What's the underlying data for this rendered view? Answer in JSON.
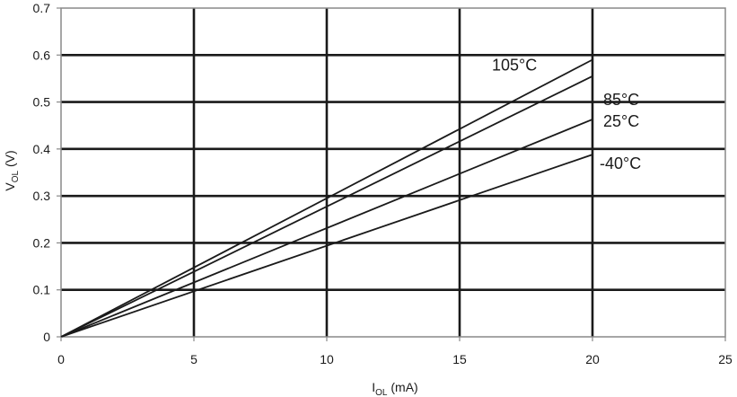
{
  "chart_data": {
    "type": "line",
    "title": "",
    "xlabel": {
      "main": "I",
      "sub": "OL",
      "rest": " (mA)"
    },
    "ylabel": {
      "main": "V",
      "sub": "OL",
      "rest": " (V)"
    },
    "xlim": [
      0,
      25
    ],
    "ylim": [
      0,
      0.7
    ],
    "xticks": [
      "0",
      "5",
      "10",
      "15",
      "20",
      "25"
    ],
    "yticks": [
      "0",
      "0.1",
      "0.2",
      "0.3",
      "0.4",
      "0.5",
      "0.6",
      "0.7"
    ],
    "xtick_values": [
      0,
      5,
      10,
      15,
      20,
      25
    ],
    "ytick_values": [
      0,
      0.1,
      0.2,
      0.3,
      0.4,
      0.5,
      0.6,
      0.7
    ],
    "grid": true,
    "legend": "inline labels",
    "series": [
      {
        "name": "105°C",
        "x": [
          0,
          20
        ],
        "y": [
          0,
          0.59
        ]
      },
      {
        "name": "85°C",
        "x": [
          0,
          20
        ],
        "y": [
          0,
          0.555
        ]
      },
      {
        "name": "25°C",
        "x": [
          0,
          20
        ],
        "y": [
          0,
          0.463
        ]
      },
      {
        "name": "-40°C",
        "x": [
          0,
          20
        ],
        "y": [
          0,
          0.388
        ]
      }
    ],
    "colors": {
      "line": "#1a1a1a",
      "grid": "#1a1a1a",
      "frame": "#888888"
    }
  }
}
